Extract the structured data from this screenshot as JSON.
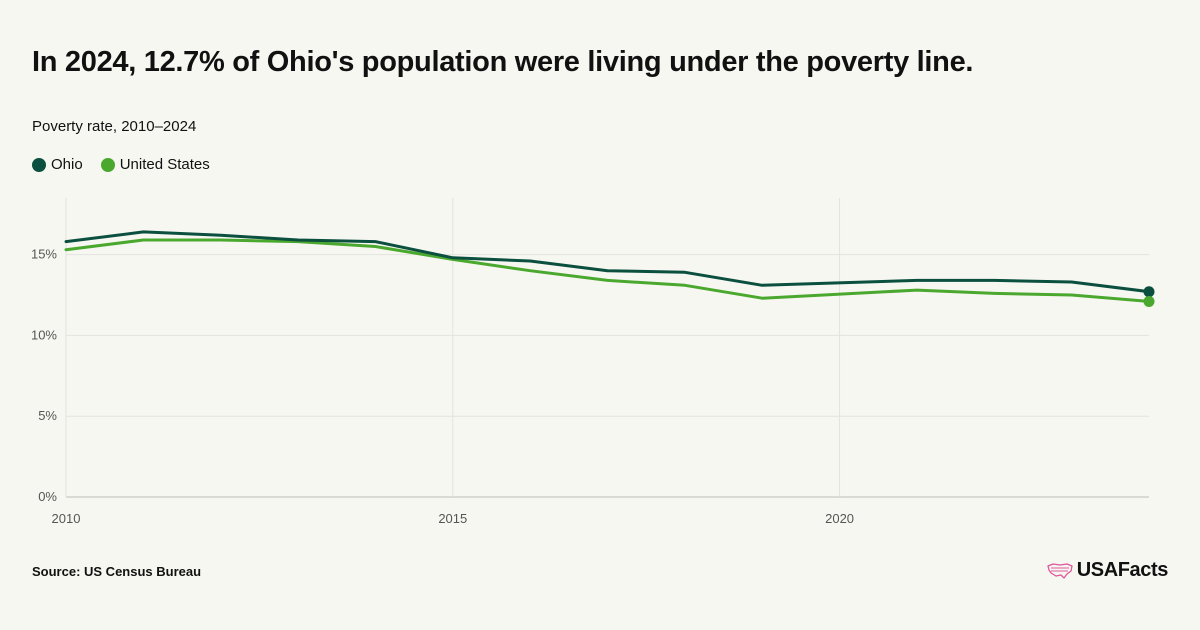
{
  "header": {
    "title": "In 2024, 12.7% of Ohio's population were living under the poverty line.",
    "subtitle": "Poverty rate, 2010–2024"
  },
  "footer": {
    "source": "Source: US Census Bureau",
    "logo_text": "USAFacts",
    "logo_icon": "us-map-icon",
    "logo_color": "#e0569b"
  },
  "chart_data": {
    "type": "line",
    "x": [
      2010,
      2011,
      2012,
      2013,
      2014,
      2015,
      2016,
      2017,
      2018,
      2019,
      2021,
      2022,
      2023,
      2024
    ],
    "series": [
      {
        "name": "Ohio",
        "color": "#0b4f3f",
        "values": [
          15.8,
          16.4,
          16.2,
          15.9,
          15.8,
          14.8,
          14.6,
          14.0,
          13.9,
          13.1,
          13.4,
          13.4,
          13.3,
          12.7
        ]
      },
      {
        "name": "United States",
        "color": "#4ba82e",
        "values": [
          15.3,
          15.9,
          15.9,
          15.8,
          15.5,
          14.7,
          14.0,
          13.4,
          13.1,
          12.3,
          12.8,
          12.6,
          12.5,
          12.1
        ]
      }
    ],
    "xlim": [
      2010,
      2024
    ],
    "ylim": [
      0,
      18.5
    ],
    "y_ticks": [
      0,
      5,
      10,
      15
    ],
    "y_tick_labels": [
      "0%",
      "5%",
      "10%",
      "15%"
    ],
    "x_ticks": [
      2010,
      2015,
      2020
    ],
    "x_tick_labels": [
      "2010",
      "2015",
      "2020"
    ],
    "grid": true,
    "legend_position": "top-left",
    "end_markers": true
  }
}
